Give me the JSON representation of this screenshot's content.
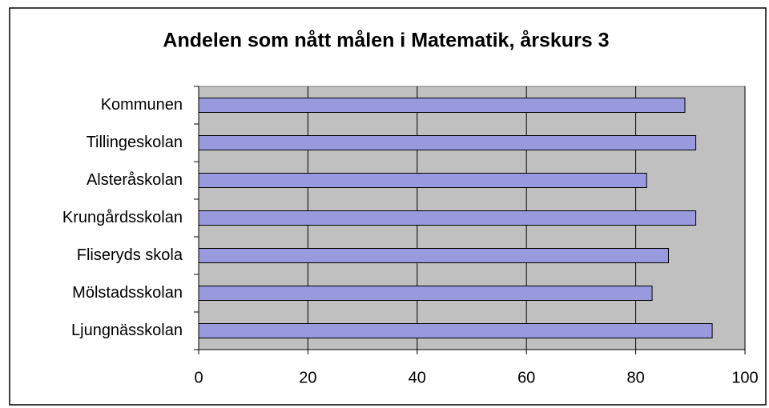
{
  "chart_data": {
    "type": "bar",
    "orientation": "horizontal",
    "title": "Andelen som nått målen i Matematik, årskurs 3",
    "categories": [
      "Kommunen",
      "Tillingeskolan",
      "Alsteråskolan",
      "Krungårdsskolan",
      "Fliseryds skola",
      "Mölstadsskolan",
      "Ljungnässkolan"
    ],
    "values": [
      89,
      91,
      82,
      91,
      86,
      83,
      94
    ],
    "color": "#9999dd",
    "xlim": [
      0,
      100
    ],
    "xticks": [
      0,
      20,
      40,
      60,
      80,
      100
    ],
    "grid": true
  }
}
